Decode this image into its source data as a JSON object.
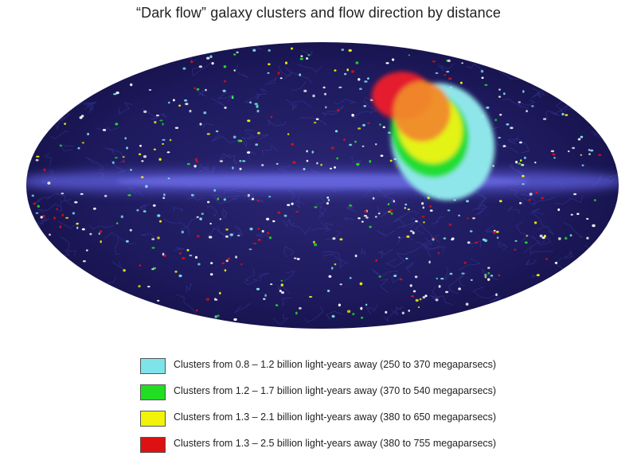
{
  "title": "“Dark flow” galaxy clusters and flow direction by distance",
  "colors": {
    "sky_background": "#1d1a5c",
    "milky_way_band": "#5a5ae0"
  },
  "legend": [
    {
      "label": "Clusters from 0.8 – 1.2 billion light-years away (250 to 370 megaparsecs)",
      "color": "#7fe3ea"
    },
    {
      "label": "Clusters from 1.2  – 1.7 billion light-years away (370 to 540 megaparsecs)",
      "color": "#22dd22"
    },
    {
      "label": "Clusters from 1.3  – 2.1 billion light-years away (380 to 650 megaparsecs)",
      "color": "#f2f20a"
    },
    {
      "label": "Clusters from 1.3  – 2.5 billion light-years away (380 to 755 megaparsecs)",
      "color": "#dd1111"
    }
  ]
}
